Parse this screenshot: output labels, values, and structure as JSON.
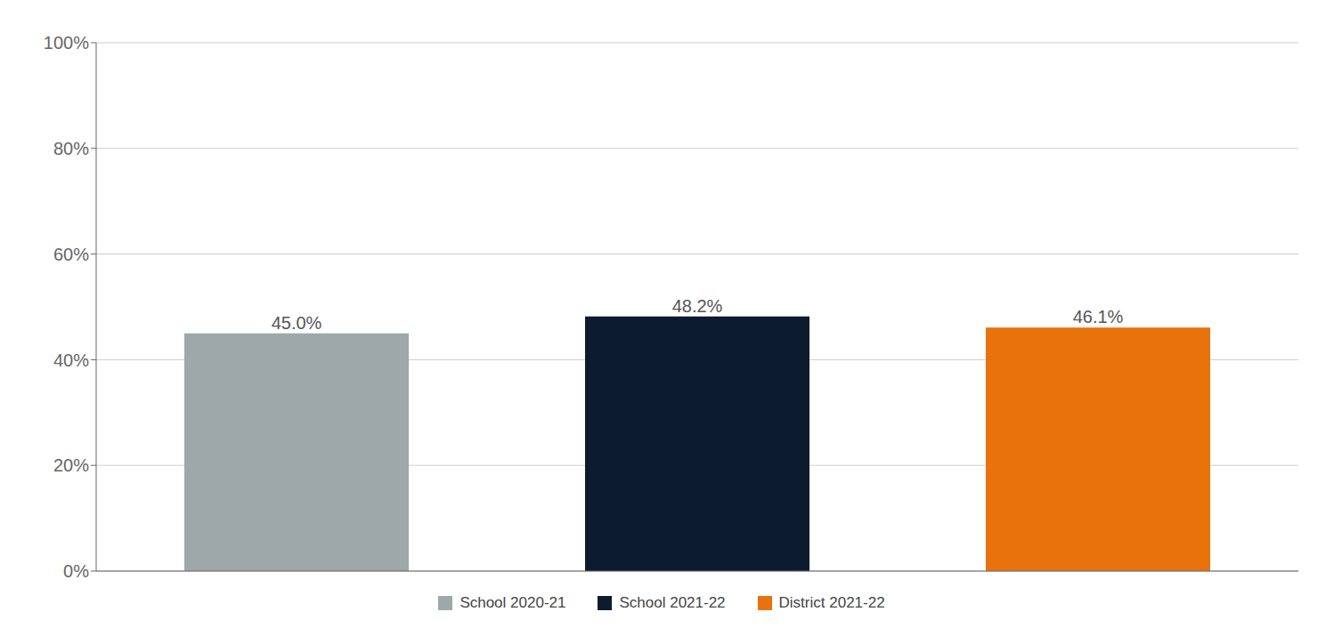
{
  "chart_data": {
    "type": "bar",
    "categories": [
      "School 2020-21",
      "School 2021-22",
      "District 2021-22"
    ],
    "values": [
      45.0,
      48.2,
      46.1
    ],
    "value_labels": [
      "45.0%",
      "48.2%",
      "46.1%"
    ],
    "colors": [
      "#9ea8a8",
      "#0d1b2e",
      "#e8720c"
    ],
    "ylim": [
      0,
      100
    ],
    "yticks": [
      {
        "value": 0,
        "label": "0%"
      },
      {
        "value": 20,
        "label": "20%"
      },
      {
        "value": 40,
        "label": "40%"
      },
      {
        "value": 60,
        "label": "60%"
      },
      {
        "value": 80,
        "label": "80%"
      },
      {
        "value": 100,
        "label": "100%"
      }
    ],
    "grid": true,
    "legend": "bottom",
    "data_labels": true,
    "tick_labels": "y"
  }
}
